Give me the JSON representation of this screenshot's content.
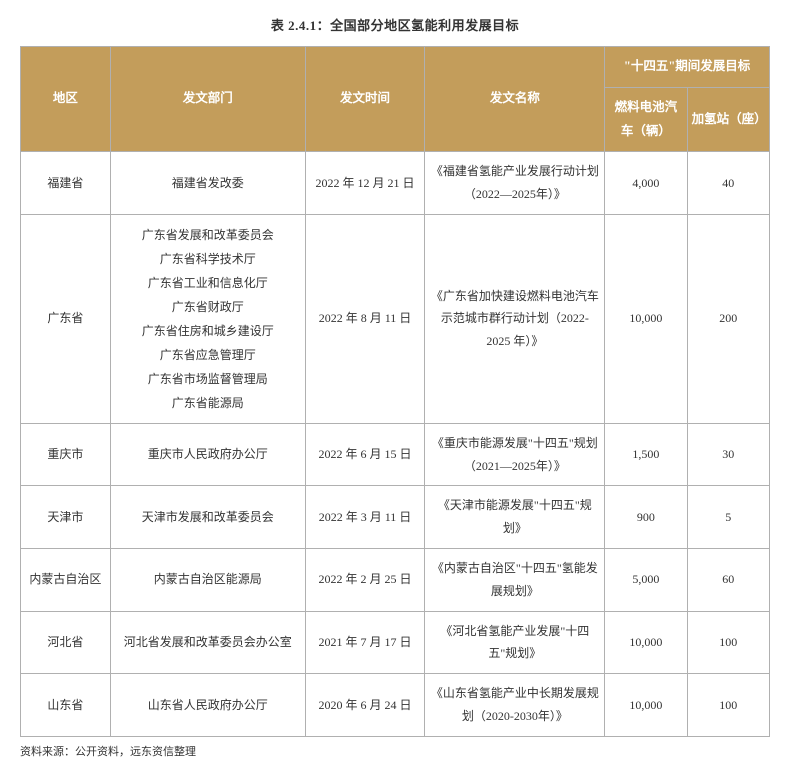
{
  "title": "表 2.4.1：全国部分地区氢能利用发展目标",
  "header_bg": "#c39d5b",
  "headers": {
    "region": "地区",
    "department": "发文部门",
    "date": "发文时间",
    "docname": "发文名称",
    "target_group": "\"十四五\"期间发展目标",
    "vehicles": "燃料电池汽车（辆）",
    "stations": "加氢站（座）"
  },
  "rows": [
    {
      "region": "福建省",
      "department": "福建省发改委",
      "date": "2022 年 12 月 21 日",
      "docname": "《福建省氢能产业发展行动计划（2022—2025年）》",
      "vehicles": "4,000",
      "stations": "40"
    },
    {
      "region": "广东省",
      "department": "广东省发展和改革委员会\n广东省科学技术厅\n广东省工业和信息化厅\n广东省财政厅\n广东省住房和城乡建设厅\n广东省应急管理厅\n广东省市场监督管理局\n广东省能源局",
      "date": "2022 年 8 月 11 日",
      "docname": "《广东省加快建设燃料电池汽车示范城市群行动计划（2022-2025 年）》",
      "vehicles": "10,000",
      "stations": "200"
    },
    {
      "region": "重庆市",
      "department": "重庆市人民政府办公厅",
      "date": "2022 年 6 月 15 日",
      "docname": "《重庆市能源发展\"十四五\"规划（2021—2025年）》",
      "vehicles": "1,500",
      "stations": "30"
    },
    {
      "region": "天津市",
      "department": "天津市发展和改革委员会",
      "date": "2022 年 3 月 11 日",
      "docname": "《天津市能源发展\"十四五\"规划》",
      "vehicles": "900",
      "stations": "5"
    },
    {
      "region": "内蒙古自治区",
      "department": "内蒙古自治区能源局",
      "date": "2022 年 2 月 25 日",
      "docname": "《内蒙古自治区\"十四五\"氢能发展规划》",
      "vehicles": "5,000",
      "stations": "60"
    },
    {
      "region": "河北省",
      "department": "河北省发展和改革委员会办公室",
      "date": "2021 年 7 月 17 日",
      "docname": "《河北省氢能产业发展\"十四五\"规划》",
      "vehicles": "10,000",
      "stations": "100"
    },
    {
      "region": "山东省",
      "department": "山东省人民政府办公厅",
      "date": "2020 年 6 月 24 日",
      "docname": "《山东省氢能产业中长期发展规划（2020-2030年）》",
      "vehicles": "10,000",
      "stations": "100"
    }
  ],
  "source": "资料来源：公开资料，远东资信整理"
}
